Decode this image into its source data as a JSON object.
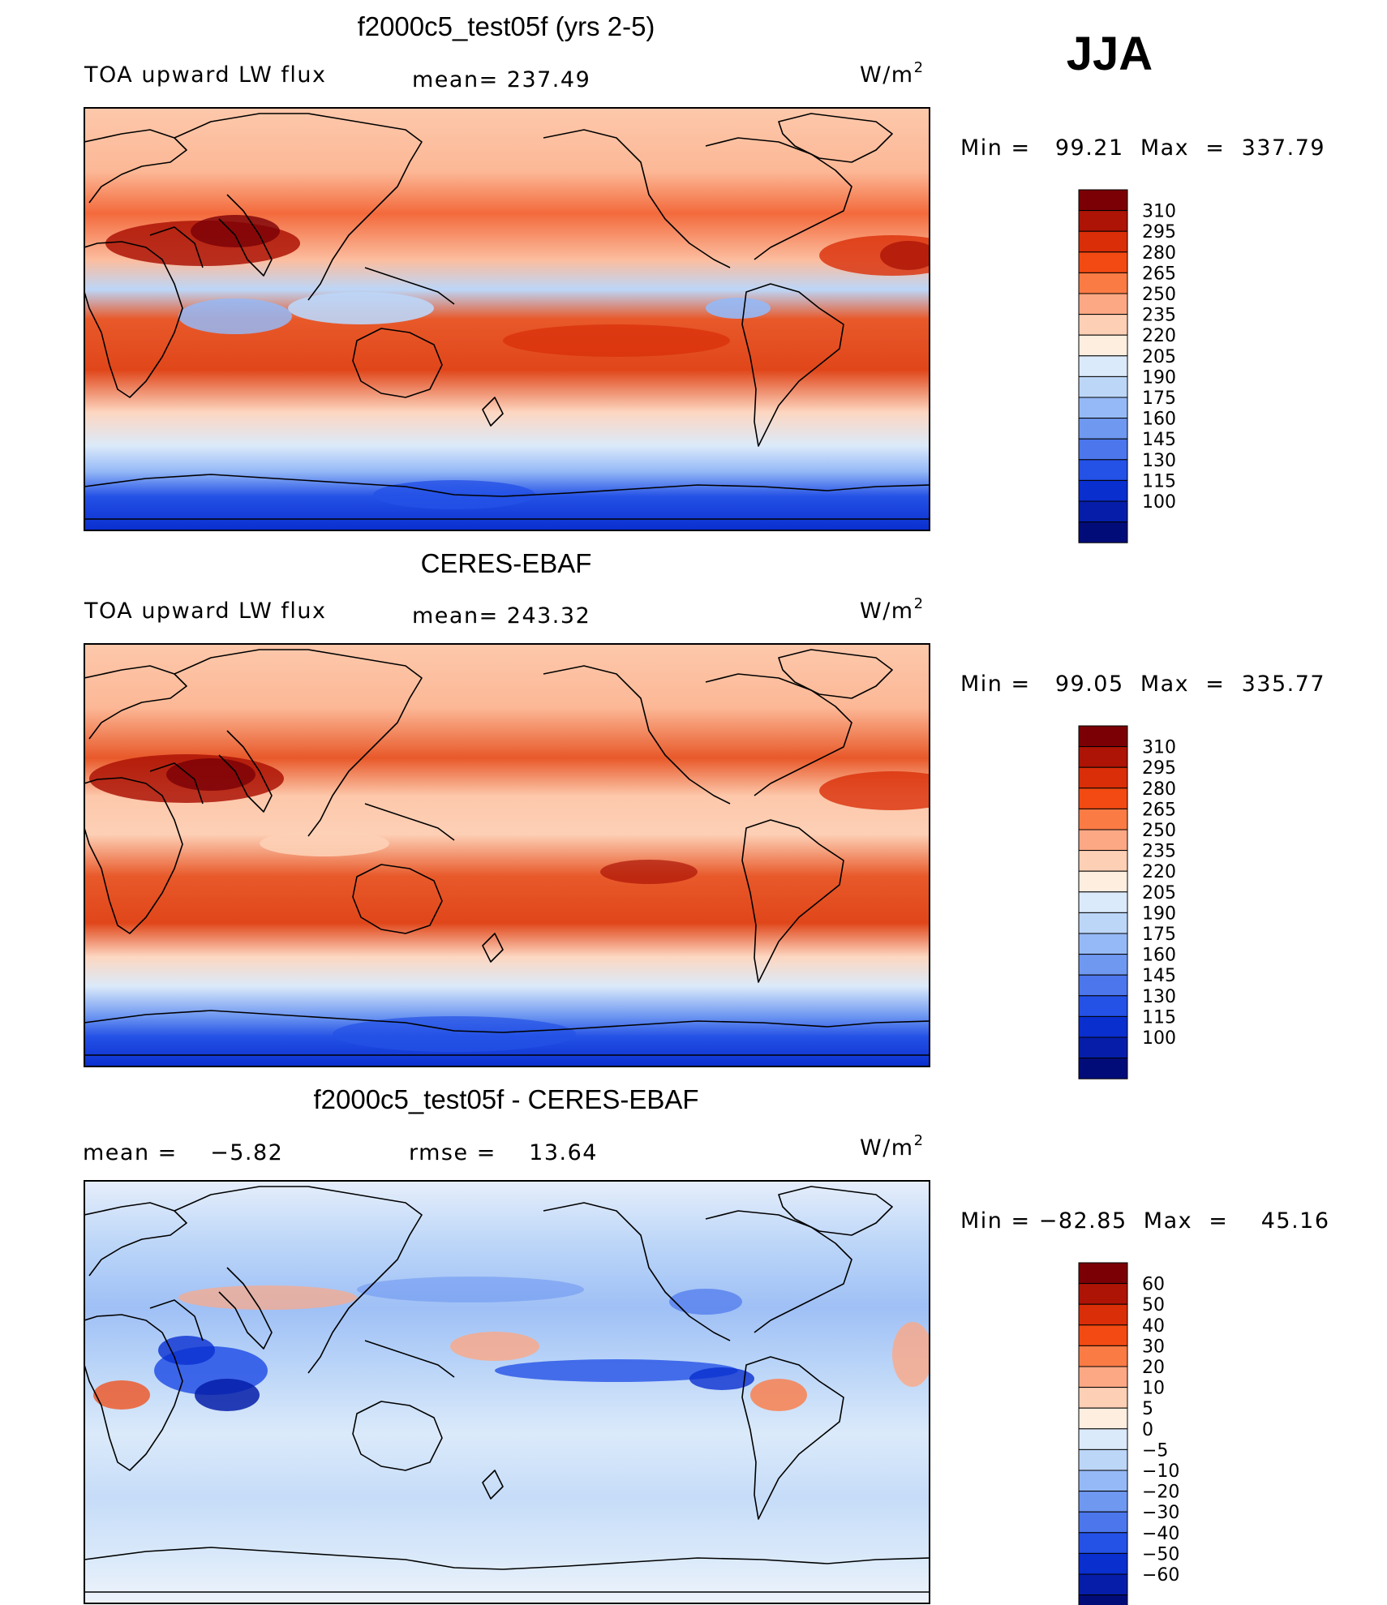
{
  "season": "JJA",
  "units_base": "W/m",
  "units_exp": "2",
  "chart_data": [
    {
      "type": "heatmap",
      "title": "f2000c5_test05f (yrs 2-5)",
      "variable": "TOA upward LW flux",
      "mean_label": "mean= 237.49",
      "min": 99.21,
      "max": 337.79,
      "min_max_label": "Min =   99.21  Max  =  337.79",
      "colorbar_levels": [
        "310",
        "295",
        "280",
        "265",
        "250",
        "235",
        "220",
        "205",
        "190",
        "175",
        "160",
        "145",
        "130",
        "115",
        "100"
      ],
      "colors": [
        "#7a0006",
        "#ad1406",
        "#d92e08",
        "#f24a12",
        "#fb7b45",
        "#fda884",
        "#fdd0b6",
        "#fdeee0",
        "#dbeafa",
        "#bcd6f8",
        "#95b9f6",
        "#6f98f1",
        "#4b76ec",
        "#2451e6",
        "#0a2fcf",
        "#051da8",
        "#020c78"
      ]
    },
    {
      "type": "heatmap",
      "title": "CERES-EBAF",
      "variable": "TOA upward LW flux",
      "mean_label": "mean= 243.32",
      "min": 99.05,
      "max": 335.77,
      "min_max_label": "Min =   99.05  Max  =  335.77",
      "colorbar_levels": [
        "310",
        "295",
        "280",
        "265",
        "250",
        "235",
        "220",
        "205",
        "190",
        "175",
        "160",
        "145",
        "130",
        "115",
        "100"
      ],
      "colors": [
        "#7a0006",
        "#ad1406",
        "#d92e08",
        "#f24a12",
        "#fb7b45",
        "#fda884",
        "#fdd0b6",
        "#fdeee0",
        "#dbeafa",
        "#bcd6f8",
        "#95b9f6",
        "#6f98f1",
        "#4b76ec",
        "#2451e6",
        "#0a2fcf",
        "#051da8",
        "#020c78"
      ]
    },
    {
      "type": "heatmap",
      "title": "f2000c5_test05f - CERES-EBAF",
      "mean_label": "mean =    −5.82",
      "rmse_label": "rmse =    13.64",
      "min": -82.85,
      "max": 45.16,
      "min_max_label": "Min = −82.85  Max  =    45.16",
      "colorbar_levels": [
        "60",
        "50",
        "40",
        "30",
        "20",
        "10",
        "5",
        "0",
        "−5",
        "−10",
        "−20",
        "−30",
        "−40",
        "−50",
        "−60"
      ],
      "colors": [
        "#7a0006",
        "#ad1406",
        "#d92e08",
        "#f24a12",
        "#fb7b45",
        "#fda884",
        "#fdd0b6",
        "#fdeee0",
        "#dbeafa",
        "#bcd6f8",
        "#95b9f6",
        "#6f98f1",
        "#4b76ec",
        "#2451e6",
        "#0a2fcf",
        "#051da8",
        "#020c78"
      ]
    }
  ]
}
